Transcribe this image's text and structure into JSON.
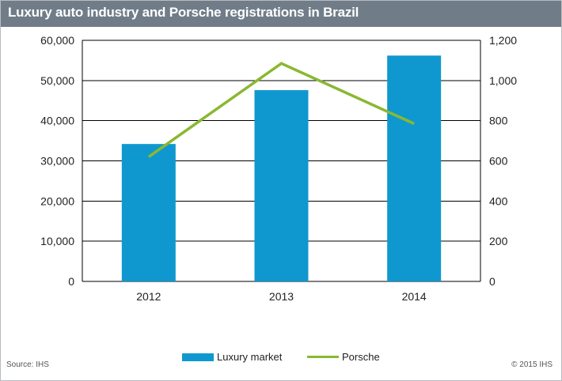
{
  "title": "Luxury auto industry and Porsche registrations in Brazil",
  "source": "Source: IHS",
  "copyright": "© 2015 IHS",
  "colors": {
    "bar": "#0f98cf",
    "line": "#8ab832",
    "header": "#707d89"
  },
  "chart_data": {
    "type": "bar",
    "categories": [
      "2012",
      "2013",
      "2014"
    ],
    "series": [
      {
        "name": "Luxury market",
        "type": "bar",
        "axis": "left",
        "values": [
          34200,
          47600,
          56200
        ]
      },
      {
        "name": "Porsche",
        "type": "line",
        "axis": "right",
        "values": [
          620,
          1085,
          785
        ]
      }
    ],
    "y_left": {
      "ylim": [
        0,
        60000
      ],
      "ticks": [
        "0",
        "10,000",
        "20,000",
        "30,000",
        "40,000",
        "50,000",
        "60,000"
      ]
    },
    "y_right": {
      "ylim": [
        0,
        1200
      ],
      "ticks": [
        "0",
        "200",
        "400",
        "600",
        "800",
        "1,000",
        "1,200"
      ]
    },
    "grid": true,
    "legend": "bottom"
  }
}
